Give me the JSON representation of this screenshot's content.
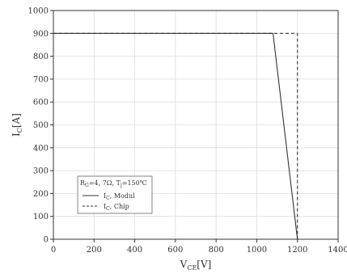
{
  "chart_data": {
    "type": "line",
    "xlabel_main": "V",
    "xlabel_sub": "CE",
    "xlabel_unit": "[V]",
    "ylabel_main": "I",
    "ylabel_sub": "C",
    "ylabel_unit": "[A]",
    "xlim": [
      0,
      1400
    ],
    "ylim": [
      0,
      1000
    ],
    "xticks": [
      0,
      200,
      400,
      600,
      800,
      1000,
      1200,
      1400
    ],
    "yticks": [
      0,
      100,
      200,
      300,
      400,
      500,
      600,
      700,
      800,
      900,
      1000
    ],
    "grid": true,
    "legend_placement": "bottom-left",
    "legend_title": "R₉=4, 7Ω, Tⱼ=150℃",
    "series": [
      {
        "name": "Iₖ, Modul",
        "label_main": "I",
        "label_sub": "C",
        "label_rest": ", Modul",
        "style": "solid",
        "x": [
          0,
          1080,
          1200
        ],
        "y": [
          900,
          900,
          0
        ]
      },
      {
        "name": "Iₖ, Chip",
        "label_main": "I",
        "label_sub": "C",
        "label_rest": ", Chip",
        "style": "dashed",
        "x": [
          0,
          1200,
          1200
        ],
        "y": [
          900,
          900,
          0
        ]
      }
    ],
    "legend_title_parts": {
      "r_main": "R",
      "r_sub": "G",
      "r_rest": "=4, 7Ω, T",
      "t_sub": "j",
      "t_rest": "=150℃"
    },
    "line_color": "#333333",
    "grid_color": "#dddddd"
  }
}
